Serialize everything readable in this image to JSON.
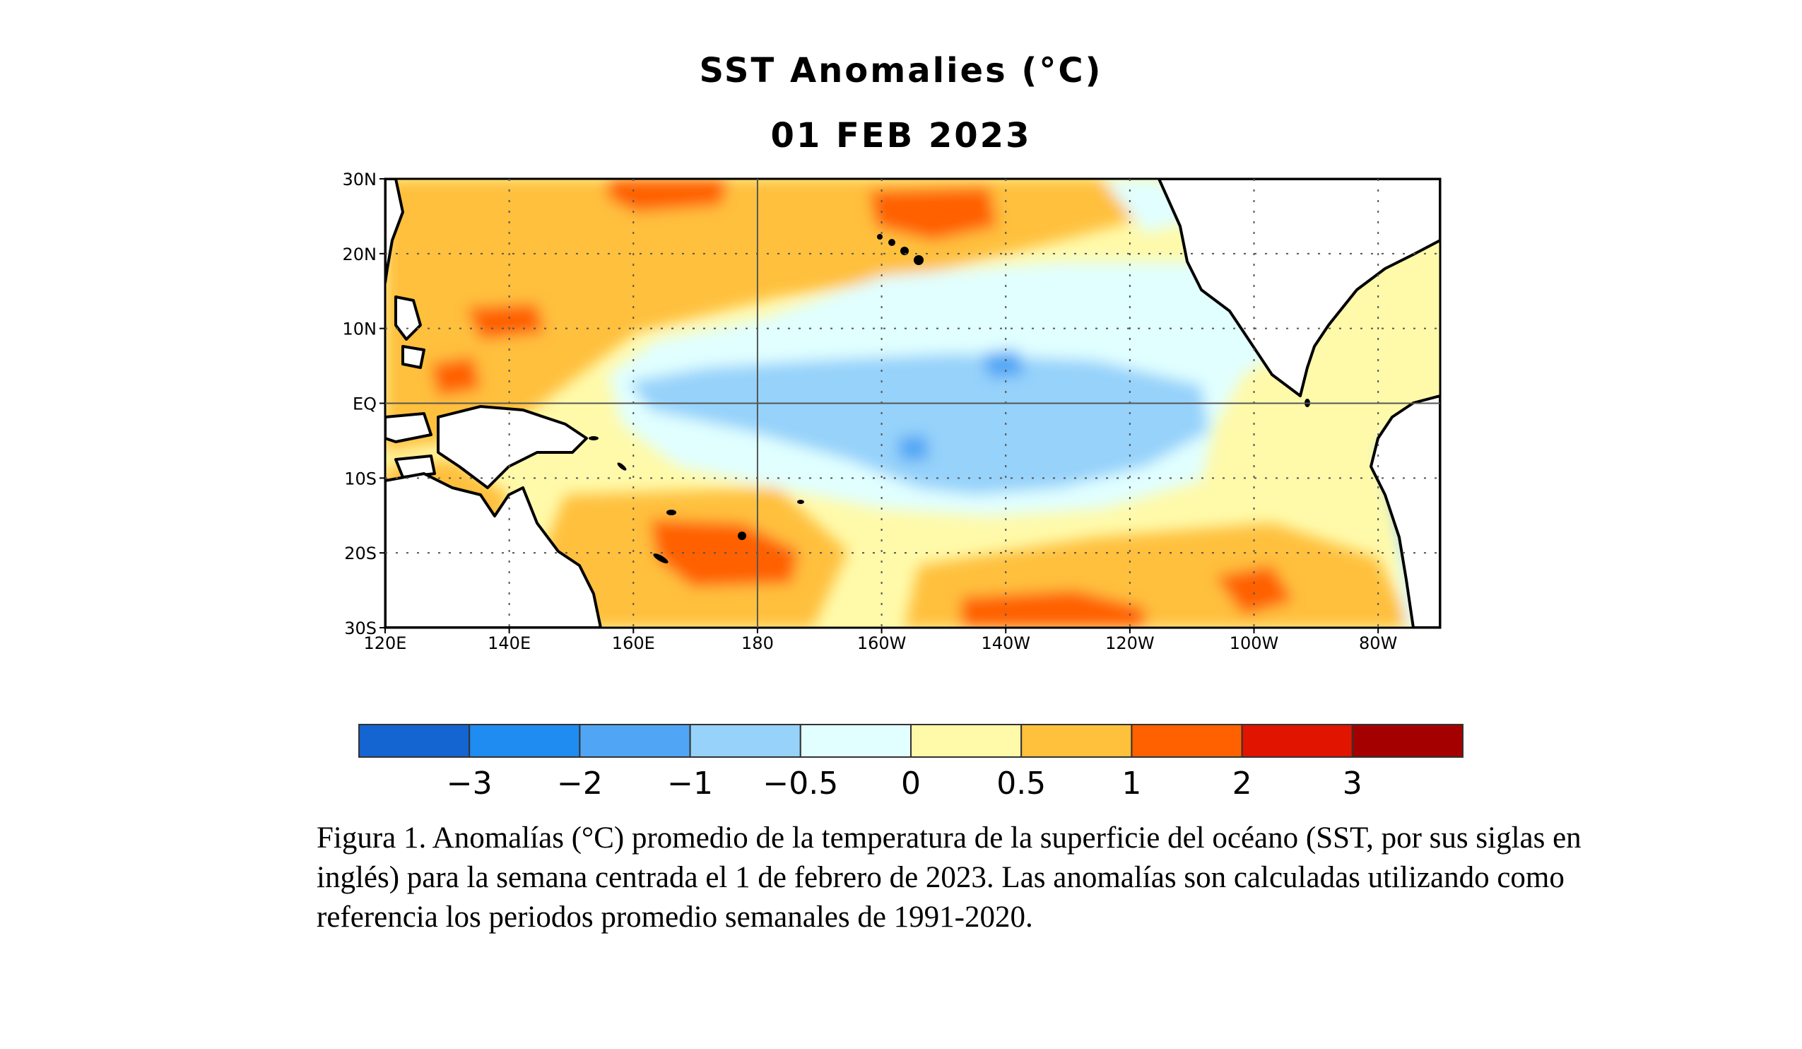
{
  "figure": {
    "title": "SST Anomalies (°C)",
    "date": "01 FEB 2023",
    "map": {
      "lon_range": [
        120,
        290
      ],
      "lat_range": [
        -30,
        30
      ],
      "lat_ticks": [
        "30N",
        "20N",
        "10N",
        "EQ",
        "10S",
        "20S",
        "30S"
      ],
      "lon_ticks": [
        "120E",
        "140E",
        "160E",
        "180",
        "160W",
        "140W",
        "120W",
        "100W",
        "80W"
      ],
      "grid": "dotted",
      "land_color": "#ffffff",
      "coast_color": "#000000"
    },
    "colorbar": {
      "colors": [
        "#1464d2",
        "#1e8cf0",
        "#50a5f5",
        "#96d2fa",
        "#e1ffff",
        "#fffaaa",
        "#ffc03c",
        "#ff6000",
        "#e11400",
        "#a50000"
      ],
      "labels": [
        "−3",
        "−2",
        "−1",
        "−0.5",
        "0",
        "0.5",
        "1",
        "2",
        "3"
      ]
    }
  },
  "caption": "Figura 1. Anomalías (°C) promedio de la temperatura de la superficie del océano (SST, por sus siglas en inglés) para la semana centrada el 1 de febrero de 2023. Las anomalías son calculadas utilizando como referencia los periodos promedio semanales de 1991-2020."
}
